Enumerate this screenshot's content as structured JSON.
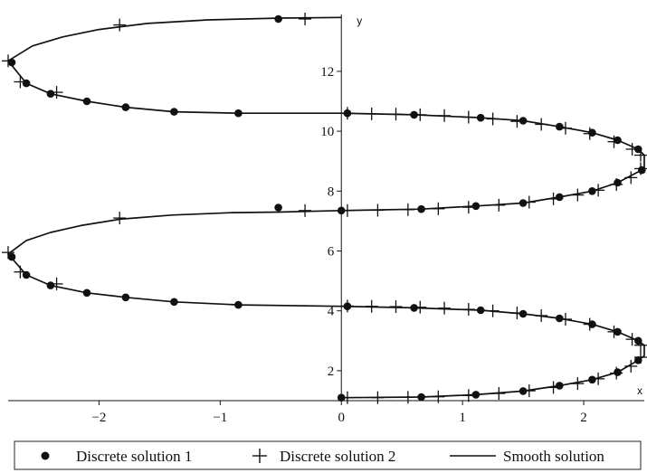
{
  "chart_data": {
    "type": "line",
    "xlabel": "x",
    "ylabel": "y",
    "xlim": [
      -2.75,
      2.5
    ],
    "ylim": [
      1.0,
      13.9
    ],
    "x_ticks": [
      -2,
      -1,
      0,
      1,
      2
    ],
    "y_ticks": [
      2,
      4,
      6,
      8,
      10,
      12
    ],
    "x_tick_labels": [
      "−2",
      "−1",
      "0",
      "1",
      "2"
    ],
    "y_tick_labels": [
      "2",
      "4",
      "6",
      "8",
      "10",
      "12"
    ],
    "grid": false,
    "legend_placement": "bottom",
    "colors": {
      "line": "#111111",
      "marker": "#111111"
    },
    "series": [
      {
        "name": "Discrete solution 1",
        "style": "dots",
        "points": [
          [
            0.0,
            1.1
          ],
          [
            0.66,
            1.12
          ],
          [
            1.11,
            1.2
          ],
          [
            1.5,
            1.32
          ],
          [
            1.8,
            1.5
          ],
          [
            2.07,
            1.7
          ],
          [
            2.28,
            1.95
          ],
          [
            2.45,
            2.35
          ],
          [
            2.45,
            3.0
          ],
          [
            2.28,
            3.3
          ],
          [
            2.07,
            3.55
          ],
          [
            1.8,
            3.75
          ],
          [
            1.5,
            3.9
          ],
          [
            1.15,
            4.02
          ],
          [
            0.6,
            4.1
          ],
          [
            0.05,
            4.15
          ],
          [
            -0.85,
            4.2
          ],
          [
            -1.38,
            4.3
          ],
          [
            -1.78,
            4.45
          ],
          [
            -2.1,
            4.6
          ],
          [
            -2.4,
            4.85
          ],
          [
            -2.6,
            5.2
          ],
          [
            -2.72,
            5.8
          ],
          [
            -0.52,
            7.45
          ],
          [
            0.0,
            7.35
          ],
          [
            0.66,
            7.4
          ],
          [
            1.11,
            7.5
          ],
          [
            1.5,
            7.6
          ],
          [
            1.8,
            7.8
          ],
          [
            2.07,
            8.0
          ],
          [
            2.28,
            8.28
          ],
          [
            2.48,
            8.7
          ],
          [
            2.45,
            9.4
          ],
          [
            2.28,
            9.7
          ],
          [
            2.07,
            9.95
          ],
          [
            1.8,
            10.15
          ],
          [
            1.5,
            10.35
          ],
          [
            1.15,
            10.45
          ],
          [
            0.6,
            10.55
          ],
          [
            0.05,
            10.6
          ],
          [
            -0.85,
            10.6
          ],
          [
            -1.38,
            10.65
          ],
          [
            -1.78,
            10.8
          ],
          [
            -2.1,
            11.0
          ],
          [
            -2.4,
            11.25
          ],
          [
            -2.6,
            11.6
          ],
          [
            -2.72,
            12.3
          ],
          [
            -0.52,
            13.75
          ]
        ]
      },
      {
        "name": "Discrete solution 2",
        "style": "crosses",
        "points": [
          [
            0.05,
            1.1
          ],
          [
            0.3,
            1.1
          ],
          [
            0.55,
            1.11
          ],
          [
            0.8,
            1.13
          ],
          [
            1.05,
            1.17
          ],
          [
            1.3,
            1.24
          ],
          [
            1.55,
            1.33
          ],
          [
            1.75,
            1.44
          ],
          [
            1.95,
            1.57
          ],
          [
            2.12,
            1.73
          ],
          [
            2.27,
            1.92
          ],
          [
            2.39,
            2.15
          ],
          [
            2.47,
            2.45
          ],
          [
            2.47,
            2.85
          ],
          [
            2.4,
            3.05
          ],
          [
            2.25,
            3.3
          ],
          [
            2.05,
            3.55
          ],
          [
            1.85,
            3.72
          ],
          [
            1.65,
            3.84
          ],
          [
            1.45,
            3.93
          ],
          [
            1.25,
            4.0
          ],
          [
            1.05,
            4.05
          ],
          [
            0.85,
            4.09
          ],
          [
            0.65,
            4.12
          ],
          [
            0.45,
            4.14
          ],
          [
            0.25,
            4.15
          ],
          [
            0.05,
            4.16
          ],
          [
            -2.35,
            4.9
          ],
          [
            -2.65,
            5.3
          ],
          [
            -2.75,
            5.95
          ],
          [
            -1.83,
            7.1
          ],
          [
            -0.3,
            7.35
          ],
          [
            0.05,
            7.35
          ],
          [
            0.3,
            7.36
          ],
          [
            0.55,
            7.38
          ],
          [
            0.8,
            7.41
          ],
          [
            1.05,
            7.46
          ],
          [
            1.3,
            7.53
          ],
          [
            1.55,
            7.63
          ],
          [
            1.75,
            7.74
          ],
          [
            1.95,
            7.87
          ],
          [
            2.12,
            8.03
          ],
          [
            2.27,
            8.22
          ],
          [
            2.39,
            8.45
          ],
          [
            2.47,
            8.75
          ],
          [
            2.47,
            9.2
          ],
          [
            2.4,
            9.4
          ],
          [
            2.25,
            9.65
          ],
          [
            2.05,
            9.92
          ],
          [
            1.85,
            10.1
          ],
          [
            1.65,
            10.23
          ],
          [
            1.45,
            10.33
          ],
          [
            1.25,
            10.41
          ],
          [
            1.05,
            10.47
          ],
          [
            0.85,
            10.52
          ],
          [
            0.65,
            10.55
          ],
          [
            0.45,
            10.57
          ],
          [
            0.25,
            10.58
          ],
          [
            0.05,
            10.6
          ],
          [
            -2.35,
            11.3
          ],
          [
            -2.65,
            11.65
          ],
          [
            -2.75,
            12.35
          ],
          [
            -1.83,
            13.55
          ],
          [
            -0.3,
            13.75
          ]
        ]
      },
      {
        "name": "Smooth solution",
        "style": "line",
        "points": [
          [
            0.0,
            1.1
          ],
          [
            0.66,
            1.12
          ],
          [
            1.11,
            1.2
          ],
          [
            1.5,
            1.32
          ],
          [
            1.8,
            1.5
          ],
          [
            2.07,
            1.7
          ],
          [
            2.28,
            1.95
          ],
          [
            2.45,
            2.35
          ],
          [
            2.5,
            2.5
          ],
          [
            2.5,
            2.85
          ],
          [
            2.45,
            3.0
          ],
          [
            2.28,
            3.3
          ],
          [
            2.07,
            3.55
          ],
          [
            1.8,
            3.75
          ],
          [
            1.5,
            3.9
          ],
          [
            1.15,
            4.02
          ],
          [
            0.6,
            4.1
          ],
          [
            0.0,
            4.15
          ],
          [
            -0.85,
            4.2
          ],
          [
            -1.38,
            4.3
          ],
          [
            -1.78,
            4.45
          ],
          [
            -2.1,
            4.6
          ],
          [
            -2.4,
            4.85
          ],
          [
            -2.6,
            5.2
          ],
          [
            -2.75,
            5.9
          ],
          [
            -2.6,
            6.35
          ],
          [
            -2.4,
            6.62
          ],
          [
            -2.15,
            6.85
          ],
          [
            -1.83,
            7.06
          ],
          [
            -1.4,
            7.2
          ],
          [
            -0.9,
            7.28
          ],
          [
            -0.52,
            7.3
          ],
          [
            0.0,
            7.35
          ],
          [
            0.66,
            7.4
          ],
          [
            1.11,
            7.5
          ],
          [
            1.5,
            7.6
          ],
          [
            1.8,
            7.8
          ],
          [
            2.07,
            8.0
          ],
          [
            2.28,
            8.28
          ],
          [
            2.5,
            8.75
          ],
          [
            2.5,
            9.2
          ],
          [
            2.45,
            9.4
          ],
          [
            2.28,
            9.7
          ],
          [
            2.07,
            9.95
          ],
          [
            1.8,
            10.15
          ],
          [
            1.5,
            10.35
          ],
          [
            1.15,
            10.45
          ],
          [
            0.6,
            10.55
          ],
          [
            0.0,
            10.6
          ],
          [
            -0.85,
            10.6
          ],
          [
            -1.38,
            10.65
          ],
          [
            -1.78,
            10.8
          ],
          [
            -2.1,
            11.0
          ],
          [
            -2.4,
            11.25
          ],
          [
            -2.6,
            11.6
          ],
          [
            -2.75,
            12.35
          ],
          [
            -2.55,
            12.85
          ],
          [
            -2.3,
            13.15
          ],
          [
            -2.0,
            13.4
          ],
          [
            -1.6,
            13.6
          ],
          [
            -1.1,
            13.72
          ],
          [
            -0.5,
            13.78
          ],
          [
            0.0,
            13.8
          ]
        ]
      }
    ]
  },
  "legend": {
    "items": [
      {
        "label": "Discrete solution 1",
        "symbol": "dot"
      },
      {
        "label": "Discrete solution 2",
        "symbol": "cross"
      },
      {
        "label": "Smooth solution",
        "symbol": "line"
      }
    ]
  }
}
